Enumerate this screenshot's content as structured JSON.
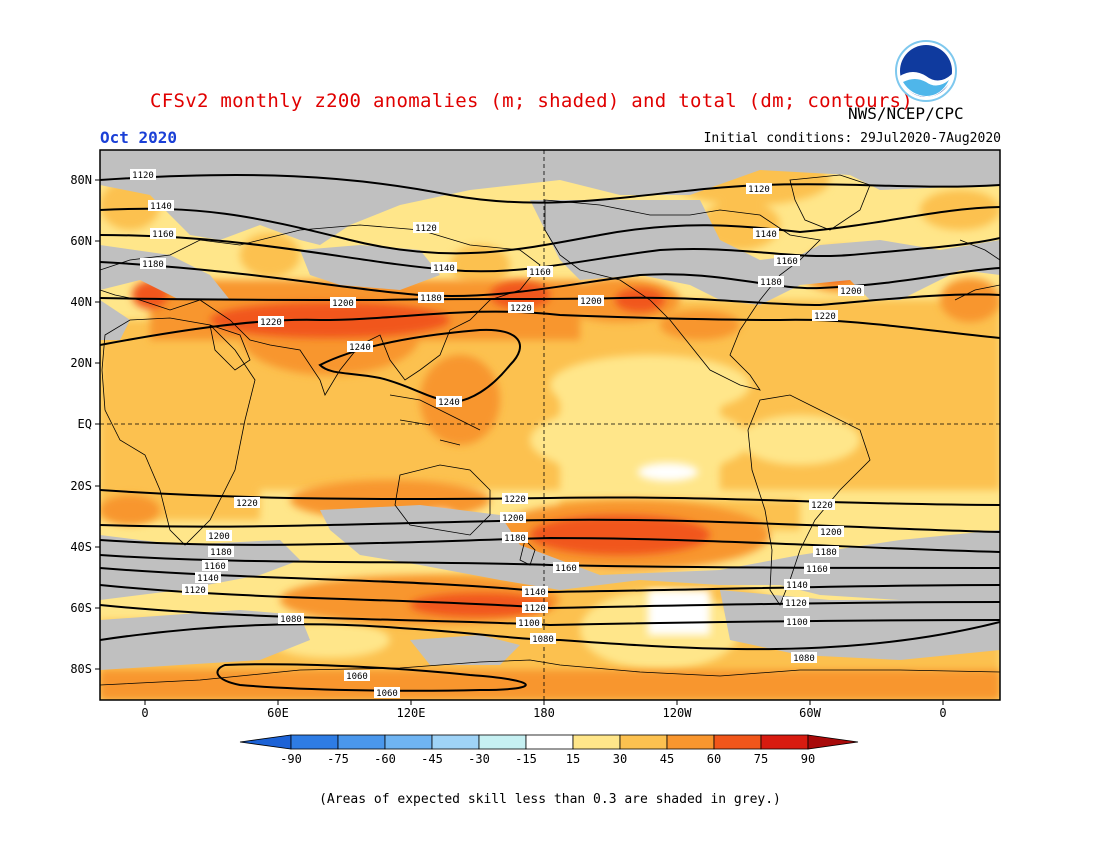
{
  "title": "CFSv2 monthly z200 anomalies (m; shaded) and total (dm; contours)",
  "agency": "NWS/NCEP/CPC",
  "month": "Oct 2020",
  "initial_conditions": "Initial conditions: 29Jul2020-7Aug2020",
  "footnote": "(Areas of expected skill less than 0.3 are shaded in grey.)",
  "lat_labels": [
    "80N",
    "60N",
    "40N",
    "20N",
    "EQ",
    "20S",
    "40S",
    "60S",
    "80S"
  ],
  "lon_labels": [
    "0",
    "60E",
    "120E",
    "180",
    "120W",
    "60W",
    "0"
  ],
  "colorbar": {
    "labels": [
      "-90",
      "-75",
      "-60",
      "-45",
      "-30",
      "-15",
      "15",
      "30",
      "45",
      "60",
      "75",
      "90"
    ],
    "colors": [
      "#1c62d6",
      "#2e7ce4",
      "#4a97ec",
      "#6fb4f2",
      "#9fd3f7",
      "#c6f0f2",
      "#ffffff",
      "#ffe68a",
      "#fcc150",
      "#f8962e",
      "#f1561a",
      "#d81b10",
      "#a80a0a"
    ]
  },
  "contour_labels": {
    "c1060": "1060",
    "c1080": "1080",
    "c1100": "1100",
    "c1120": "1120",
    "c1140": "1140",
    "c1160": "1160",
    "c1180": "1180",
    "c1200": "1200",
    "c1220": "1220",
    "c1240": "1240"
  },
  "colors": {
    "title": "#e00000",
    "month": "#1a3fd6",
    "skill_grey": "#c0c0c0"
  }
}
